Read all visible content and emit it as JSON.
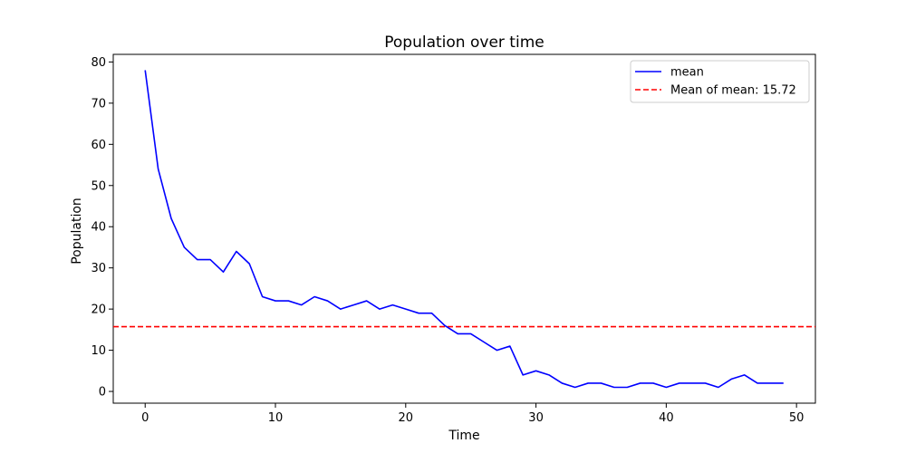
{
  "chart_data": {
    "type": "line",
    "title": "Population over time",
    "xlabel": "Time",
    "ylabel": "Population",
    "xlim": [
      -2.45,
      51.45
    ],
    "ylim": [
      -2.85,
      81.85
    ],
    "x_ticks": [
      0,
      10,
      20,
      30,
      40,
      50
    ],
    "y_ticks": [
      0,
      10,
      20,
      30,
      40,
      50,
      60,
      70,
      80
    ],
    "grid": false,
    "legend_position": "top-right",
    "series": [
      {
        "name": "mean",
        "color": "#0000ff",
        "style": "solid",
        "x": [
          0,
          1,
          2,
          3,
          4,
          5,
          6,
          7,
          8,
          9,
          10,
          11,
          12,
          13,
          14,
          15,
          16,
          17,
          18,
          19,
          20,
          21,
          22,
          23,
          24,
          25,
          26,
          27,
          28,
          29,
          30,
          31,
          32,
          33,
          34,
          35,
          36,
          37,
          38,
          39,
          40,
          41,
          42,
          43,
          44,
          45,
          46,
          47,
          48,
          49
        ],
        "y": [
          78,
          54,
          42,
          35,
          32,
          32,
          29,
          34,
          31,
          23,
          22,
          22,
          21,
          23,
          22,
          20,
          21,
          22,
          20,
          21,
          20,
          19,
          19,
          16,
          14,
          14,
          12,
          10,
          11,
          4,
          5,
          4,
          2,
          1,
          2,
          2,
          1,
          1,
          2,
          2,
          1,
          2,
          2,
          2,
          1,
          3,
          4,
          2,
          2,
          2
        ]
      }
    ],
    "reference_lines": [
      {
        "name": "Mean of mean: 15.72",
        "orientation": "horizontal",
        "y": 15.72,
        "color": "#ff0000",
        "style": "dashed"
      }
    ]
  }
}
